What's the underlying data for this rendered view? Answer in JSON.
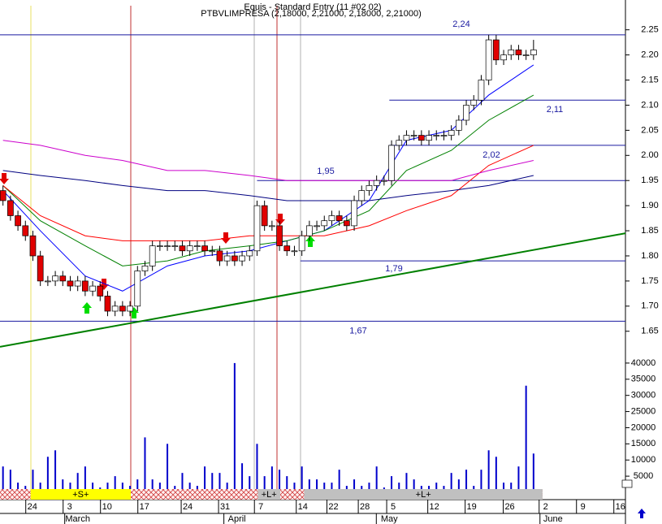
{
  "chart_data": [
    {
      "type": "candlestick",
      "title": "Equis - Standard Entry (11 #02 02)",
      "subtitle": "PTBVLIMPRESA (2,18000, 2,21000, 2,18000, 2,21000)",
      "xlim": [
        -0.4,
        83.3
      ],
      "ylim": [
        1.614,
        2.298
      ],
      "yticks": [
        1.65,
        {
          "value": 1.7,
          "label": "1.70"
        },
        1.75,
        {
          "value": 1.8,
          "label": "1.80"
        },
        1.85,
        {
          "value": 1.9,
          "label": "1.90"
        },
        1.95,
        {
          "value": 2.0,
          "label": "2.00"
        },
        2.05,
        {
          "value": 2.1,
          "label": "2.10"
        },
        2.15,
        {
          "value": 2.2,
          "label": "2.20"
        },
        2.25
      ],
      "xticks": [
        {
          "value": 3.7,
          "label": "24"
        },
        {
          "value": 8.7,
          "label": "3"
        },
        {
          "value": 13.7,
          "label": "10"
        },
        {
          "value": 18.7,
          "label": "17"
        },
        {
          "value": 24.5,
          "label": "24"
        },
        {
          "value": 29.5,
          "label": "31"
        },
        {
          "value": 34.3,
          "label": "7"
        },
        {
          "value": 39.9,
          "label": "14"
        },
        {
          "value": 44,
          "label": "22"
        },
        {
          "value": 48.2,
          "label": "28"
        },
        {
          "value": 52,
          "label": "5"
        },
        {
          "value": 57.5,
          "label": "12"
        },
        {
          "value": 62.5,
          "label": "19"
        },
        {
          "value": 67.6,
          "label": "26"
        },
        {
          "value": 72.4,
          "label": "2"
        },
        {
          "value": 77.4,
          "label": "9"
        },
        {
          "value": 82.4,
          "label": "16"
        }
      ],
      "month_ticks": [
        {
          "value": 10,
          "label": "March"
        },
        {
          "value": 31.3,
          "label": "April"
        },
        {
          "value": 51.7,
          "label": "May"
        },
        {
          "value": 73.6,
          "label": "June"
        }
      ],
      "open": [
        1.93,
        1.91,
        1.88,
        1.86,
        1.84,
        1.8,
        1.75,
        1.75,
        1.76,
        1.75,
        1.74,
        1.75,
        1.73,
        1.74,
        1.72,
        1.69,
        1.7,
        1.69,
        1.7,
        1.77,
        1.78,
        1.82,
        1.82,
        1.82,
        1.82,
        1.81,
        1.82,
        1.82,
        1.81,
        1.81,
        1.79,
        1.8,
        1.79,
        1.8,
        1.81,
        1.9,
        1.86,
        1.86,
        1.82,
        1.81,
        1.81,
        1.84,
        1.86,
        1.86,
        1.87,
        1.88,
        1.87,
        1.86,
        1.91,
        1.93,
        1.94,
        1.95,
        1.95,
        2.02,
        2.03,
        2.04,
        2.04,
        2.03,
        2.04,
        2.04,
        2.04,
        2.05,
        2.07,
        2.1,
        2.11,
        2.15,
        2.23,
        2.19,
        2.2,
        2.21,
        2.2,
        2.2
      ],
      "high": [
        1.94,
        1.92,
        1.89,
        1.87,
        1.85,
        1.81,
        1.76,
        1.77,
        1.77,
        1.76,
        1.76,
        1.76,
        1.75,
        1.75,
        1.73,
        1.71,
        1.71,
        1.71,
        1.78,
        1.79,
        1.83,
        1.83,
        1.83,
        1.83,
        1.83,
        1.83,
        1.83,
        1.83,
        1.82,
        1.82,
        1.81,
        1.81,
        1.81,
        1.82,
        1.91,
        1.91,
        1.87,
        1.87,
        1.83,
        1.82,
        1.85,
        1.87,
        1.87,
        1.88,
        1.89,
        1.89,
        1.88,
        1.92,
        1.94,
        1.95,
        1.96,
        1.96,
        2.03,
        2.04,
        2.05,
        2.05,
        2.05,
        2.05,
        2.05,
        2.05,
        2.06,
        2.08,
        2.11,
        2.12,
        2.16,
        2.24,
        2.24,
        2.21,
        2.22,
        2.22,
        2.21,
        2.23
      ],
      "low": [
        1.9,
        1.87,
        1.85,
        1.83,
        1.79,
        1.74,
        1.74,
        1.74,
        1.74,
        1.73,
        1.73,
        1.72,
        1.72,
        1.71,
        1.68,
        1.68,
        1.68,
        1.68,
        1.69,
        1.76,
        1.77,
        1.81,
        1.81,
        1.81,
        1.8,
        1.8,
        1.81,
        1.8,
        1.8,
        1.78,
        1.78,
        1.78,
        1.78,
        1.79,
        1.8,
        1.85,
        1.85,
        1.81,
        1.8,
        1.8,
        1.8,
        1.83,
        1.85,
        1.85,
        1.86,
        1.86,
        1.85,
        1.85,
        1.9,
        1.92,
        1.93,
        1.94,
        1.94,
        2.01,
        2.02,
        2.03,
        2.02,
        2.02,
        2.03,
        2.03,
        2.03,
        2.04,
        2.06,
        2.09,
        2.1,
        2.14,
        2.18,
        2.18,
        2.19,
        2.19,
        2.19,
        2.19
      ],
      "close": [
        1.91,
        1.88,
        1.86,
        1.84,
        1.8,
        1.75,
        1.75,
        1.76,
        1.75,
        1.74,
        1.75,
        1.73,
        1.74,
        1.72,
        1.69,
        1.7,
        1.69,
        1.7,
        1.77,
        1.78,
        1.82,
        1.82,
        1.82,
        1.82,
        1.81,
        1.82,
        1.82,
        1.81,
        1.81,
        1.79,
        1.8,
        1.79,
        1.8,
        1.81,
        1.9,
        1.86,
        1.86,
        1.82,
        1.81,
        1.81,
        1.84,
        1.86,
        1.86,
        1.87,
        1.88,
        1.87,
        1.86,
        1.91,
        1.93,
        1.94,
        1.95,
        1.95,
        2.02,
        2.03,
        2.04,
        2.04,
        2.03,
        2.04,
        2.04,
        2.04,
        2.05,
        2.07,
        2.1,
        2.11,
        2.15,
        2.23,
        2.19,
        2.2,
        2.21,
        2.2,
        2.2,
        2.21
      ],
      "up_color": "#ffffff",
      "down_color": "#e00000",
      "series": [
        {
          "color": "#0000ff",
          "x": [
            0,
            5,
            11,
            16,
            22,
            27,
            33,
            38,
            43,
            49,
            54,
            60,
            65,
            71
          ],
          "values": [
            1.93,
            1.85,
            1.76,
            1.73,
            1.78,
            1.8,
            1.81,
            1.83,
            1.85,
            1.91,
            2.03,
            2.05,
            2.12,
            2.18
          ]
        },
        {
          "color": "#008000",
          "x": [
            0,
            5,
            11,
            16,
            22,
            27,
            33,
            38,
            43,
            49,
            54,
            60,
            65,
            71
          ],
          "values": [
            1.94,
            1.87,
            1.82,
            1.78,
            1.79,
            1.81,
            1.82,
            1.83,
            1.85,
            1.89,
            1.97,
            2.01,
            2.07,
            2.12
          ]
        },
        {
          "color": "#ff0000",
          "x": [
            0,
            5,
            11,
            16,
            22,
            27,
            33,
            38,
            43,
            49,
            54,
            60,
            65,
            71
          ],
          "values": [
            1.94,
            1.88,
            1.84,
            1.83,
            1.83,
            1.83,
            1.84,
            1.84,
            1.84,
            1.86,
            1.89,
            1.92,
            1.98,
            2.02
          ]
        },
        {
          "color": "#cc00cc",
          "x": [
            0,
            5,
            11,
            16,
            22,
            27,
            33,
            38,
            43,
            49,
            54,
            60,
            65,
            71
          ],
          "values": [
            2.03,
            2.02,
            2.0,
            1.99,
            1.97,
            1.97,
            1.96,
            1.95,
            1.95,
            1.95,
            1.95,
            1.95,
            1.97,
            1.99
          ]
        },
        {
          "color": "#000080",
          "x": [
            0,
            5,
            11,
            16,
            22,
            27,
            33,
            38,
            43,
            49,
            54,
            60,
            65,
            71
          ],
          "values": [
            1.97,
            1.96,
            1.95,
            1.94,
            1.93,
            1.93,
            1.92,
            1.91,
            1.91,
            1.91,
            1.92,
            1.93,
            1.94,
            1.96
          ]
        }
      ],
      "trendline": {
        "color": "#008000",
        "x": [
          -0.4,
          83.3
        ],
        "values": [
          1.619,
          1.845
        ]
      },
      "levels": [
        {
          "value": 2.24,
          "label": "2,24",
          "start": -0.4
        },
        {
          "value": 2.11,
          "label": "2,11",
          "start": 51.7
        },
        {
          "value": 2.02,
          "label": "2,02",
          "start": 51.7
        },
        {
          "value": 1.95,
          "label": "1,95",
          "start": 34
        },
        {
          "value": 1.79,
          "label": "1,79",
          "start": 39.8
        },
        {
          "value": 1.67,
          "label": "1,67",
          "start": -0.4
        }
      ],
      "signals": [
        {
          "label": "+S+",
          "start": 3.7,
          "end": 17.1,
          "color": "#ffff00"
        },
        {
          "label": "+L+",
          "start": 34.1,
          "end": 37.1,
          "color": "#c0c0c0"
        },
        {
          "label": "+L+",
          "start": 40.3,
          "end": 72.2,
          "color": "#c0c0c0"
        }
      ]
    },
    {
      "type": "bar",
      "color": "#0000cc",
      "ylim": [
        0,
        44000
      ],
      "yticks": [
        5000,
        10000,
        15000,
        20000,
        25000,
        30000,
        35000,
        40000
      ],
      "values": [
        8000,
        7000,
        3000,
        2000,
        7000,
        3000,
        11000,
        13000,
        4000,
        3000,
        6000,
        8000,
        3000,
        1500,
        3000,
        5000,
        3000,
        2000,
        4000,
        17000,
        4000,
        3000,
        15000,
        2000,
        6000,
        3000,
        2000,
        8000,
        6000,
        6000,
        3000,
        40000,
        9000,
        5000,
        15000,
        5000,
        8000,
        7000,
        5000,
        3000,
        8000,
        4000,
        4000,
        3000,
        3000,
        7000,
        2000,
        4000,
        2000,
        3000,
        8000,
        1500,
        5000,
        3000,
        6000,
        4000,
        2000,
        2000,
        3000,
        2000,
        6000,
        4000,
        7000,
        2000,
        7000,
        13000,
        11000,
        3000,
        3000,
        8000,
        33000,
        12000
      ]
    }
  ]
}
